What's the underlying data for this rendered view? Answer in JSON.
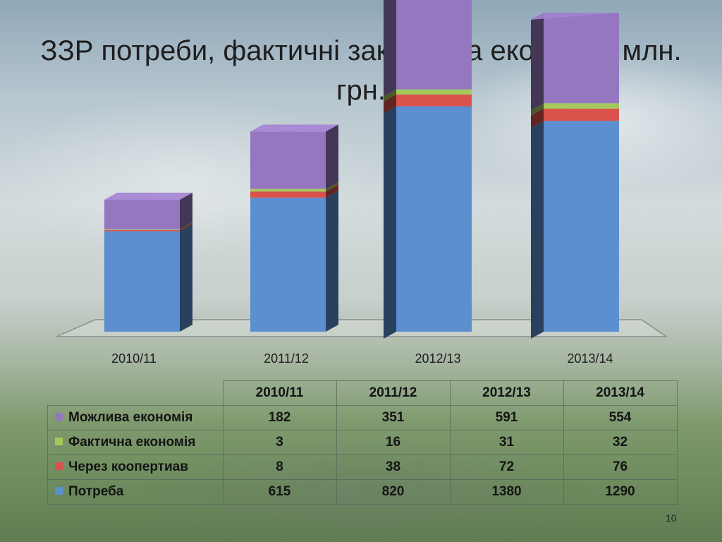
{
  "title": "ЗЗР потреби, фактичні закупки та економія, млн. грн.",
  "page_number": "10",
  "chart_data": {
    "type": "bar",
    "stacked": true,
    "three_d": true,
    "categories": [
      "2010/11",
      "2011/12",
      "2012/13",
      "2013/14"
    ],
    "series": [
      {
        "name": "Потреба",
        "color": "#5b8fd0",
        "values": [
          615,
          820,
          1380,
          1290
        ]
      },
      {
        "name": "Через коопертиав",
        "color": "#d9534c",
        "values": [
          8,
          38,
          72,
          76
        ]
      },
      {
        "name": "Фактична економія",
        "color": "#a4c95a",
        "values": [
          3,
          16,
          31,
          32
        ]
      },
      {
        "name": "Можлива економія",
        "color": "#9577c0",
        "values": [
          182,
          351,
          591,
          554
        ]
      }
    ],
    "legend": "data-table-below"
  },
  "table": {
    "header": [
      "2010/11",
      "2011/12",
      "2012/13",
      "2013/14"
    ],
    "rows": [
      {
        "label": "Можлива економія",
        "color": "#9577c0",
        "values": [
          "182",
          "351",
          "591",
          "554"
        ]
      },
      {
        "label": "Фактична економія",
        "color": "#a4c95a",
        "values": [
          "3",
          "16",
          "31",
          "32"
        ]
      },
      {
        "label": "Через коопертиав",
        "color": "#d9534c",
        "values": [
          "8",
          "38",
          "72",
          "76"
        ]
      },
      {
        "label": "Потреба",
        "color": "#5b8fd0",
        "values": [
          "615",
          "820",
          "1380",
          "1290"
        ]
      }
    ]
  }
}
